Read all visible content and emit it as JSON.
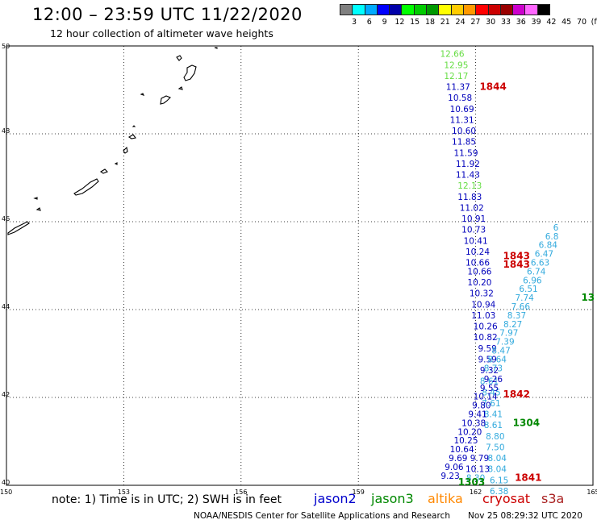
{
  "header": {
    "title": "12:00 – 23:59 UTC 11/22/2020",
    "subtitle": "12 hour collection of altimeter wave heights"
  },
  "colorbar": {
    "colors": [
      "#808080",
      "#00ffff",
      "#00aaff",
      "#0000ff",
      "#0000aa",
      "#00ff00",
      "#00cc00",
      "#009900",
      "#ffff00",
      "#ffcc00",
      "#ff9900",
      "#ff0000",
      "#cc0000",
      "#990000",
      "#cc00cc",
      "#ff66ff",
      "#000000"
    ],
    "labels": [
      "3",
      "6",
      "9",
      "12",
      "15",
      "18",
      "21",
      "24",
      "27",
      "30",
      "33",
      "36",
      "39",
      "42",
      "45",
      "70",
      "(ft)"
    ]
  },
  "map": {
    "lon_ticks": [
      "150",
      "153",
      "156",
      "159",
      "162",
      "165"
    ],
    "lat_ticks": [
      "50",
      "48",
      "46",
      "44",
      "42",
      "40"
    ],
    "lon_range": [
      150,
      165
    ],
    "lat_range": [
      40,
      50
    ],
    "grid": "dotted",
    "track_colors": {
      "jason2": "#0000cc",
      "jason3": "#008800",
      "altika": "#ff8800",
      "cryosat": "#cc0000",
      "s3a": "#aa2222"
    },
    "level_colors": {
      "light_green": "#66dd44",
      "dark_blue": "#0000bb",
      "cyan": "#33aadd"
    },
    "tracks": [
      {
        "sat": "jason2",
        "points": [
          {
            "lat": 49.75,
            "lon": 161.4,
            "v": "12.66",
            "c": "light_green"
          },
          {
            "lat": 49.5,
            "lon": 161.5,
            "v": "12.95",
            "c": "light_green"
          },
          {
            "lat": 49.25,
            "lon": 161.5,
            "v": "12.17",
            "c": "light_green"
          },
          {
            "lat": 49.0,
            "lon": 161.55,
            "v": "11.37",
            "c": "dark_blue"
          },
          {
            "lat": 48.75,
            "lon": 161.6,
            "v": "10.58",
            "c": "dark_blue"
          },
          {
            "lat": 48.5,
            "lon": 161.65,
            "v": "10.69",
            "c": "dark_blue"
          },
          {
            "lat": 48.25,
            "lon": 161.65,
            "v": "11.31",
            "c": "dark_blue"
          },
          {
            "lat": 48.0,
            "lon": 161.7,
            "v": "10.60",
            "c": "dark_blue"
          },
          {
            "lat": 47.75,
            "lon": 161.7,
            "v": "11.85",
            "c": "dark_blue"
          },
          {
            "lat": 47.5,
            "lon": 161.75,
            "v": "11.59",
            "c": "dark_blue"
          },
          {
            "lat": 47.25,
            "lon": 161.8,
            "v": "11.92",
            "c": "dark_blue"
          },
          {
            "lat": 47.0,
            "lon": 161.8,
            "v": "11.43",
            "c": "dark_blue"
          },
          {
            "lat": 46.75,
            "lon": 161.85,
            "v": "12.13",
            "c": "light_green"
          },
          {
            "lat": 46.5,
            "lon": 161.85,
            "v": "11.83",
            "c": "dark_blue"
          },
          {
            "lat": 46.25,
            "lon": 161.9,
            "v": "11.02",
            "c": "dark_blue"
          },
          {
            "lat": 46.0,
            "lon": 161.95,
            "v": "10.91",
            "c": "dark_blue"
          },
          {
            "lat": 45.75,
            "lon": 161.95,
            "v": "10.73",
            "c": "dark_blue"
          },
          {
            "lat": 45.5,
            "lon": 162.0,
            "v": "10.41",
            "c": "dark_blue"
          },
          {
            "lat": 45.25,
            "lon": 162.05,
            "v": "10.24",
            "c": "dark_blue"
          },
          {
            "lat": 45.0,
            "lon": 162.05,
            "v": "10.66",
            "c": "dark_blue"
          },
          {
            "lat": 44.8,
            "lon": 162.1,
            "v": "10.66",
            "c": "dark_blue"
          },
          {
            "lat": 44.55,
            "lon": 162.1,
            "v": "10.20",
            "c": "dark_blue"
          },
          {
            "lat": 44.3,
            "lon": 162.15,
            "v": "10.32",
            "c": "dark_blue"
          },
          {
            "lat": 44.05,
            "lon": 162.2,
            "v": "10.94",
            "c": "dark_blue"
          },
          {
            "lat": 43.8,
            "lon": 162.2,
            "v": "11.03",
            "c": "dark_blue"
          },
          {
            "lat": 43.55,
            "lon": 162.25,
            "v": "10.26",
            "c": "dark_blue"
          },
          {
            "lat": 43.3,
            "lon": 162.25,
            "v": "10.82",
            "c": "dark_blue"
          },
          {
            "lat": 43.05,
            "lon": 162.3,
            "v": "9.59",
            "c": "dark_blue"
          },
          {
            "lat": 42.8,
            "lon": 162.3,
            "v": "9.59",
            "c": "dark_blue"
          },
          {
            "lat": 42.55,
            "lon": 162.35,
            "v": "9.32",
            "c": "dark_blue"
          },
          {
            "lat": 42.3,
            "lon": 162.35,
            "v": "8.61",
            "c": "cyan"
          },
          {
            "lat": 42.05,
            "lon": 162.4,
            "v": "8.45",
            "c": "cyan"
          },
          {
            "lat": 41.8,
            "lon": 162.4,
            "v": "7.61",
            "c": "cyan"
          },
          {
            "lat": 41.55,
            "lon": 162.45,
            "v": "8.41",
            "c": "cyan"
          },
          {
            "lat": 41.3,
            "lon": 162.45,
            "v": "8.61",
            "c": "cyan"
          },
          {
            "lat": 41.05,
            "lon": 162.5,
            "v": "8.80",
            "c": "cyan"
          },
          {
            "lat": 40.8,
            "lon": 162.5,
            "v": "7.50",
            "c": "cyan"
          },
          {
            "lat": 40.55,
            "lon": 162.55,
            "v": "8.04",
            "c": "cyan"
          },
          {
            "lat": 40.3,
            "lon": 162.55,
            "v": "8.04",
            "c": "cyan"
          },
          {
            "lat": 40.05,
            "lon": 162.6,
            "v": "6.15",
            "c": "cyan"
          },
          {
            "lat": 39.8,
            "lon": 162.6,
            "v": "6.38",
            "c": "cyan"
          }
        ]
      },
      {
        "sat": "jason2",
        "points": [
          {
            "lat": 40.15,
            "lon": 161.35,
            "v": "9.23",
            "c": "dark_blue"
          },
          {
            "lat": 40.35,
            "lon": 161.45,
            "v": "9.06",
            "c": "dark_blue"
          },
          {
            "lat": 40.55,
            "lon": 161.55,
            "v": "9.69",
            "c": "dark_blue"
          },
          {
            "lat": 40.75,
            "lon": 161.65,
            "v": "10.64",
            "c": "dark_blue"
          },
          {
            "lat": 40.95,
            "lon": 161.75,
            "v": "10.25",
            "c": "dark_blue"
          },
          {
            "lat": 41.15,
            "lon": 161.85,
            "v": "10.20",
            "c": "dark_blue"
          },
          {
            "lat": 41.35,
            "lon": 161.95,
            "v": "10.38",
            "c": "dark_blue"
          },
          {
            "lat": 41.55,
            "lon": 162.05,
            "v": "9.41",
            "c": "dark_blue"
          },
          {
            "lat": 41.75,
            "lon": 162.15,
            "v": "9.80",
            "c": "dark_blue"
          },
          {
            "lat": 41.95,
            "lon": 162.25,
            "v": "10.14",
            "c": "dark_blue"
          },
          {
            "lat": 42.15,
            "lon": 162.35,
            "v": "9.55",
            "c": "dark_blue"
          },
          {
            "lat": 42.35,
            "lon": 162.45,
            "v": "9.26",
            "c": "dark_blue"
          }
        ]
      },
      {
        "sat": "jason2",
        "points": [
          {
            "lat": 40.1,
            "lon": 162.0,
            "v": "8.30",
            "c": "cyan"
          },
          {
            "lat": 40.3,
            "lon": 162.05,
            "v": "10.13",
            "c": "dark_blue"
          },
          {
            "lat": 40.55,
            "lon": 162.1,
            "v": "9.79",
            "c": "dark_blue"
          },
          {
            "lat": 42.6,
            "lon": 162.45,
            "v": "8.73",
            "c": "cyan"
          },
          {
            "lat": 42.8,
            "lon": 162.55,
            "v": "8.64",
            "c": "cyan"
          },
          {
            "lat": 43.0,
            "lon": 162.65,
            "v": "8.47",
            "c": "cyan"
          },
          {
            "lat": 43.2,
            "lon": 162.75,
            "v": "7.39",
            "c": "cyan"
          },
          {
            "lat": 43.4,
            "lon": 162.85,
            "v": "7.97",
            "c": "cyan"
          },
          {
            "lat": 43.6,
            "lon": 162.95,
            "v": "8.27",
            "c": "cyan"
          },
          {
            "lat": 43.8,
            "lon": 163.05,
            "v": "8.37",
            "c": "cyan"
          },
          {
            "lat": 44.0,
            "lon": 163.15,
            "v": "7.66",
            "c": "cyan"
          },
          {
            "lat": 44.2,
            "lon": 163.25,
            "v": "7.74",
            "c": "cyan"
          },
          {
            "lat": 44.4,
            "lon": 163.35,
            "v": "6.51",
            "c": "cyan"
          },
          {
            "lat": 44.6,
            "lon": 163.45,
            "v": "6.96",
            "c": "cyan"
          },
          {
            "lat": 44.8,
            "lon": 163.55,
            "v": "6.74",
            "c": "cyan"
          },
          {
            "lat": 45.0,
            "lon": 163.65,
            "v": "6.63",
            "c": "cyan"
          },
          {
            "lat": 45.2,
            "lon": 163.75,
            "v": "6.47",
            "c": "cyan"
          },
          {
            "lat": 45.4,
            "lon": 163.85,
            "v": "6.84",
            "c": "cyan"
          },
          {
            "lat": 45.6,
            "lon": 163.95,
            "v": "6.8",
            "c": "cyan"
          },
          {
            "lat": 45.8,
            "lon": 164.05,
            "v": "6",
            "c": "cyan"
          }
        ]
      }
    ],
    "pass_labels": [
      {
        "text": "1844",
        "lat": 49.0,
        "lon": 162.1,
        "sat": "cryosat"
      },
      {
        "text": "1843",
        "lat": 45.15,
        "lon": 162.7,
        "sat": "cryosat"
      },
      {
        "text": "1843",
        "lat": 44.95,
        "lon": 162.7,
        "sat": "cryosat"
      },
      {
        "text": "1842",
        "lat": 42.0,
        "lon": 162.7,
        "sat": "cryosat"
      },
      {
        "text": "1841",
        "lat": 40.1,
        "lon": 163.0,
        "sat": "cryosat"
      },
      {
        "text": "1304",
        "lat": 41.35,
        "lon": 162.95,
        "sat": "jason3"
      },
      {
        "text": "1303",
        "lat": 40.0,
        "lon": 161.55,
        "sat": "jason3"
      },
      {
        "text": "13",
        "lat": 44.2,
        "lon": 164.7,
        "sat": "jason3"
      }
    ]
  },
  "note": "note: 1) Time is in UTC; 2) SWH is in feet",
  "legend": [
    {
      "name": "jason2",
      "color": "#0000cc"
    },
    {
      "name": "jason3",
      "color": "#008800"
    },
    {
      "name": "altika",
      "color": "#ff8800"
    },
    {
      "name": "cryosat",
      "color": "#cc0000"
    },
    {
      "name": "s3a",
      "color": "#aa2222"
    }
  ],
  "footer": {
    "credit": "NOAA/NESDIS Center for Satellite Applications and Research",
    "generated": "Nov 25 08:29:32 UTC 2020"
  }
}
